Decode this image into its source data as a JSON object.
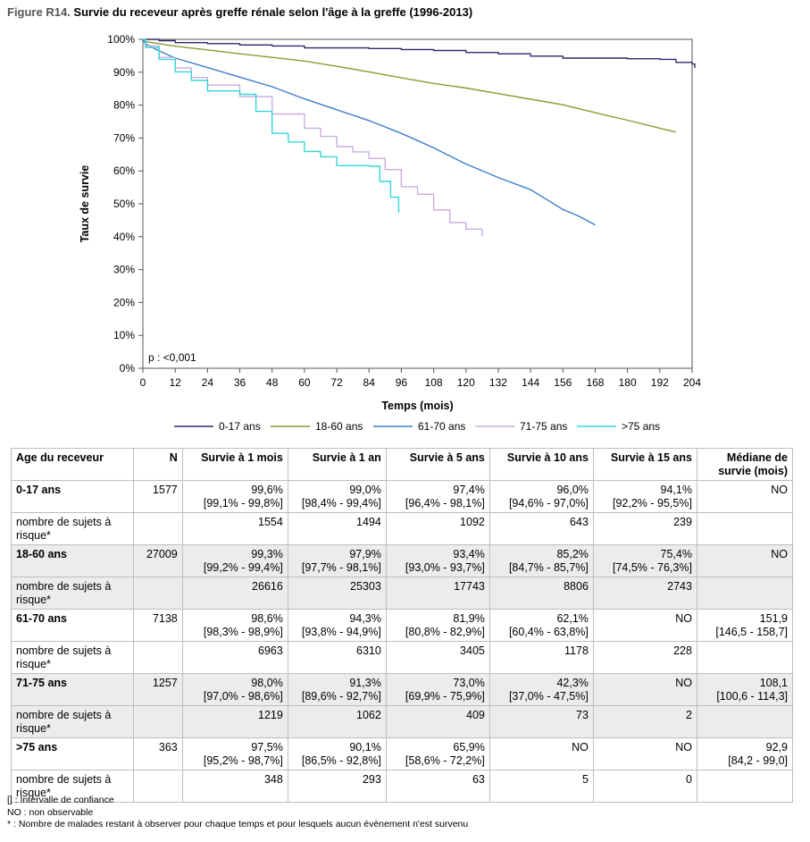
{
  "figure": {
    "label": "Figure R14.",
    "title": "Survie du receveur après greffe rénale selon l'âge à la greffe (1996-2013)"
  },
  "chart_data": {
    "type": "line",
    "xlabel": "Temps (mois)",
    "ylabel": "Taux de survie",
    "xlim": [
      0,
      204
    ],
    "ylim": [
      0,
      100
    ],
    "xticks": [
      0,
      12,
      24,
      36,
      48,
      60,
      72,
      84,
      96,
      108,
      120,
      132,
      144,
      156,
      168,
      180,
      192,
      204
    ],
    "yticks": [
      0,
      10,
      20,
      30,
      40,
      50,
      60,
      70,
      80,
      90,
      100
    ],
    "ytick_suffix": "%",
    "grid": false,
    "legend_position": "bottom",
    "annotation": "p : <0,001",
    "series": [
      {
        "name": "0-17 ans",
        "color": "#2b2b6b",
        "step": true,
        "points": [
          [
            0,
            100
          ],
          [
            6,
            99.6
          ],
          [
            12,
            99.0
          ],
          [
            24,
            98.7
          ],
          [
            36,
            98.3
          ],
          [
            48,
            98.0
          ],
          [
            60,
            97.4
          ],
          [
            84,
            97.2
          ],
          [
            96,
            96.9
          ],
          [
            108,
            96.6
          ],
          [
            120,
            96.0
          ],
          [
            132,
            95.6
          ],
          [
            144,
            94.9
          ],
          [
            156,
            94.3
          ],
          [
            180,
            94.1
          ],
          [
            192,
            93.9
          ],
          [
            198,
            93.0
          ],
          [
            204,
            92.5
          ],
          [
            205,
            91.3
          ]
        ]
      },
      {
        "name": "18-60 ans",
        "color": "#8a9a2e",
        "step": false,
        "points": [
          [
            0,
            100
          ],
          [
            1,
            99.3
          ],
          [
            12,
            97.9
          ],
          [
            24,
            96.8
          ],
          [
            36,
            95.6
          ],
          [
            48,
            94.5
          ],
          [
            60,
            93.4
          ],
          [
            72,
            91.8
          ],
          [
            84,
            90.1
          ],
          [
            96,
            88.3
          ],
          [
            108,
            86.6
          ],
          [
            120,
            85.2
          ],
          [
            132,
            83.5
          ],
          [
            144,
            81.8
          ],
          [
            156,
            80.1
          ],
          [
            168,
            77.7
          ],
          [
            180,
            75.4
          ],
          [
            192,
            73.0
          ],
          [
            198,
            71.8
          ]
        ]
      },
      {
        "name": "61-70 ans",
        "color": "#3a7dcc",
        "step": false,
        "points": [
          [
            0,
            100
          ],
          [
            1,
            98.6
          ],
          [
            6,
            96.5
          ],
          [
            12,
            94.3
          ],
          [
            24,
            91.4
          ],
          [
            36,
            88.5
          ],
          [
            48,
            85.6
          ],
          [
            60,
            81.9
          ],
          [
            72,
            78.6
          ],
          [
            84,
            75.3
          ],
          [
            96,
            71.4
          ],
          [
            108,
            67.0
          ],
          [
            120,
            62.1
          ],
          [
            132,
            58.0
          ],
          [
            144,
            54.3
          ],
          [
            156,
            48.3
          ],
          [
            162,
            46.2
          ],
          [
            168,
            43.6
          ]
        ]
      },
      {
        "name": "71-75 ans",
        "color": "#c8aee0",
        "step": true,
        "points": [
          [
            0,
            100
          ],
          [
            1,
            98.0
          ],
          [
            6,
            94.5
          ],
          [
            12,
            91.3
          ],
          [
            18,
            88.4
          ],
          [
            24,
            86.1
          ],
          [
            36,
            82.6
          ],
          [
            48,
            77.3
          ],
          [
            60,
            73.0
          ],
          [
            66,
            70.5
          ],
          [
            72,
            67.4
          ],
          [
            78,
            65.8
          ],
          [
            84,
            63.8
          ],
          [
            90,
            60.4
          ],
          [
            96,
            55.2
          ],
          [
            102,
            52.9
          ],
          [
            108,
            48.1
          ],
          [
            114,
            44.3
          ],
          [
            120,
            42.3
          ],
          [
            126,
            40.2
          ]
        ]
      },
      {
        "name": ">75 ans",
        "color": "#35d6d6",
        "step": true,
        "points": [
          [
            0,
            100
          ],
          [
            1,
            97.5
          ],
          [
            6,
            93.9
          ],
          [
            12,
            90.1
          ],
          [
            18,
            87.5
          ],
          [
            24,
            84.3
          ],
          [
            36,
            83.3
          ],
          [
            42,
            78.1
          ],
          [
            48,
            71.4
          ],
          [
            54,
            68.8
          ],
          [
            60,
            65.9
          ],
          [
            66,
            64.3
          ],
          [
            72,
            61.6
          ],
          [
            84,
            61.4
          ],
          [
            88,
            56.8
          ],
          [
            92,
            52.0
          ],
          [
            95,
            47.3
          ]
        ]
      }
    ]
  },
  "table": {
    "headers": [
      "Age du receveur",
      "N",
      "Survie à 1 mois",
      "Survie à 1 an",
      "Survie à 5 ans",
      "Survie à 10 ans",
      "Survie à 15 ans",
      "Médiane de survie (mois)"
    ],
    "groups": [
      {
        "label": "0-17 ans",
        "n": "1577",
        "values": [
          [
            "99,6%",
            "[99,1% - 99,8%]"
          ],
          [
            "99,0%",
            "[98,4% - 99,4%]"
          ],
          [
            "97,4%",
            "[96,4% - 98,1%]"
          ],
          [
            "96,0%",
            "[94,6% - 97,0%]"
          ],
          [
            "94,1%",
            "[92,2% - 95,5%]"
          ],
          [
            "NO",
            ""
          ]
        ],
        "risk_label": "nombre de sujets à risque*",
        "risk": [
          "1554",
          "1494",
          "1092",
          "643",
          "239"
        ]
      },
      {
        "label": "18-60 ans",
        "n": "27009",
        "values": [
          [
            "99,3%",
            "[99,2% - 99,4%]"
          ],
          [
            "97,9%",
            "[97,7% - 98,1%]"
          ],
          [
            "93,4%",
            "[93,0% - 93,7%]"
          ],
          [
            "85,2%",
            "[84,7% - 85,7%]"
          ],
          [
            "75,4%",
            "[74,5% - 76,3%]"
          ],
          [
            "NO",
            ""
          ]
        ],
        "risk_label": "nombre de sujets à risque*",
        "risk": [
          "26616",
          "25303",
          "17743",
          "8806",
          "2743"
        ]
      },
      {
        "label": "61-70 ans",
        "n": "7138",
        "values": [
          [
            "98,6%",
            "[98,3% - 98,9%]"
          ],
          [
            "94,3%",
            "[93,8% - 94,9%]"
          ],
          [
            "81,9%",
            "[80,8% - 82,9%]"
          ],
          [
            "62,1%",
            "[60,4% - 63,8%]"
          ],
          [
            "NO",
            ""
          ],
          [
            "151,9",
            "[146,5 - 158,7]"
          ]
        ],
        "risk_label": "nombre de sujets à risque*",
        "risk": [
          "6963",
          "6310",
          "3405",
          "1178",
          "228"
        ]
      },
      {
        "label": "71-75 ans",
        "n": "1257",
        "values": [
          [
            "98,0%",
            "[97,0% - 98,6%]"
          ],
          [
            "91,3%",
            "[89,6% - 92,7%]"
          ],
          [
            "73,0%",
            "[69,9% - 75,9%]"
          ],
          [
            "42,3%",
            "[37,0% - 47,5%]"
          ],
          [
            "NO",
            ""
          ],
          [
            "108,1",
            "[100,6 - 114,3]"
          ]
        ],
        "risk_label": "nombre de sujets à risque*",
        "risk": [
          "1219",
          "1062",
          "409",
          "73",
          "2"
        ]
      },
      {
        "label": ">75 ans",
        "n": "363",
        "values": [
          [
            "97,5%",
            "[95,2% - 98,7%]"
          ],
          [
            "90,1%",
            "[86,5% - 92,8%]"
          ],
          [
            "65,9%",
            "[58,6% - 72,2%]"
          ],
          [
            "NO",
            ""
          ],
          [
            "NO",
            ""
          ],
          [
            "92,9",
            "[84,2 - 99,0]"
          ]
        ],
        "risk_label": "nombre de sujets à risque*",
        "risk": [
          "348",
          "293",
          "63",
          "5",
          "0"
        ]
      }
    ]
  },
  "notes": [
    "[] : Intervalle de confiance",
    "NO : non observable",
    "* : Nombre de malades restant à observer pour chaque temps et pour lesquels aucun évènement n'est survenu"
  ]
}
